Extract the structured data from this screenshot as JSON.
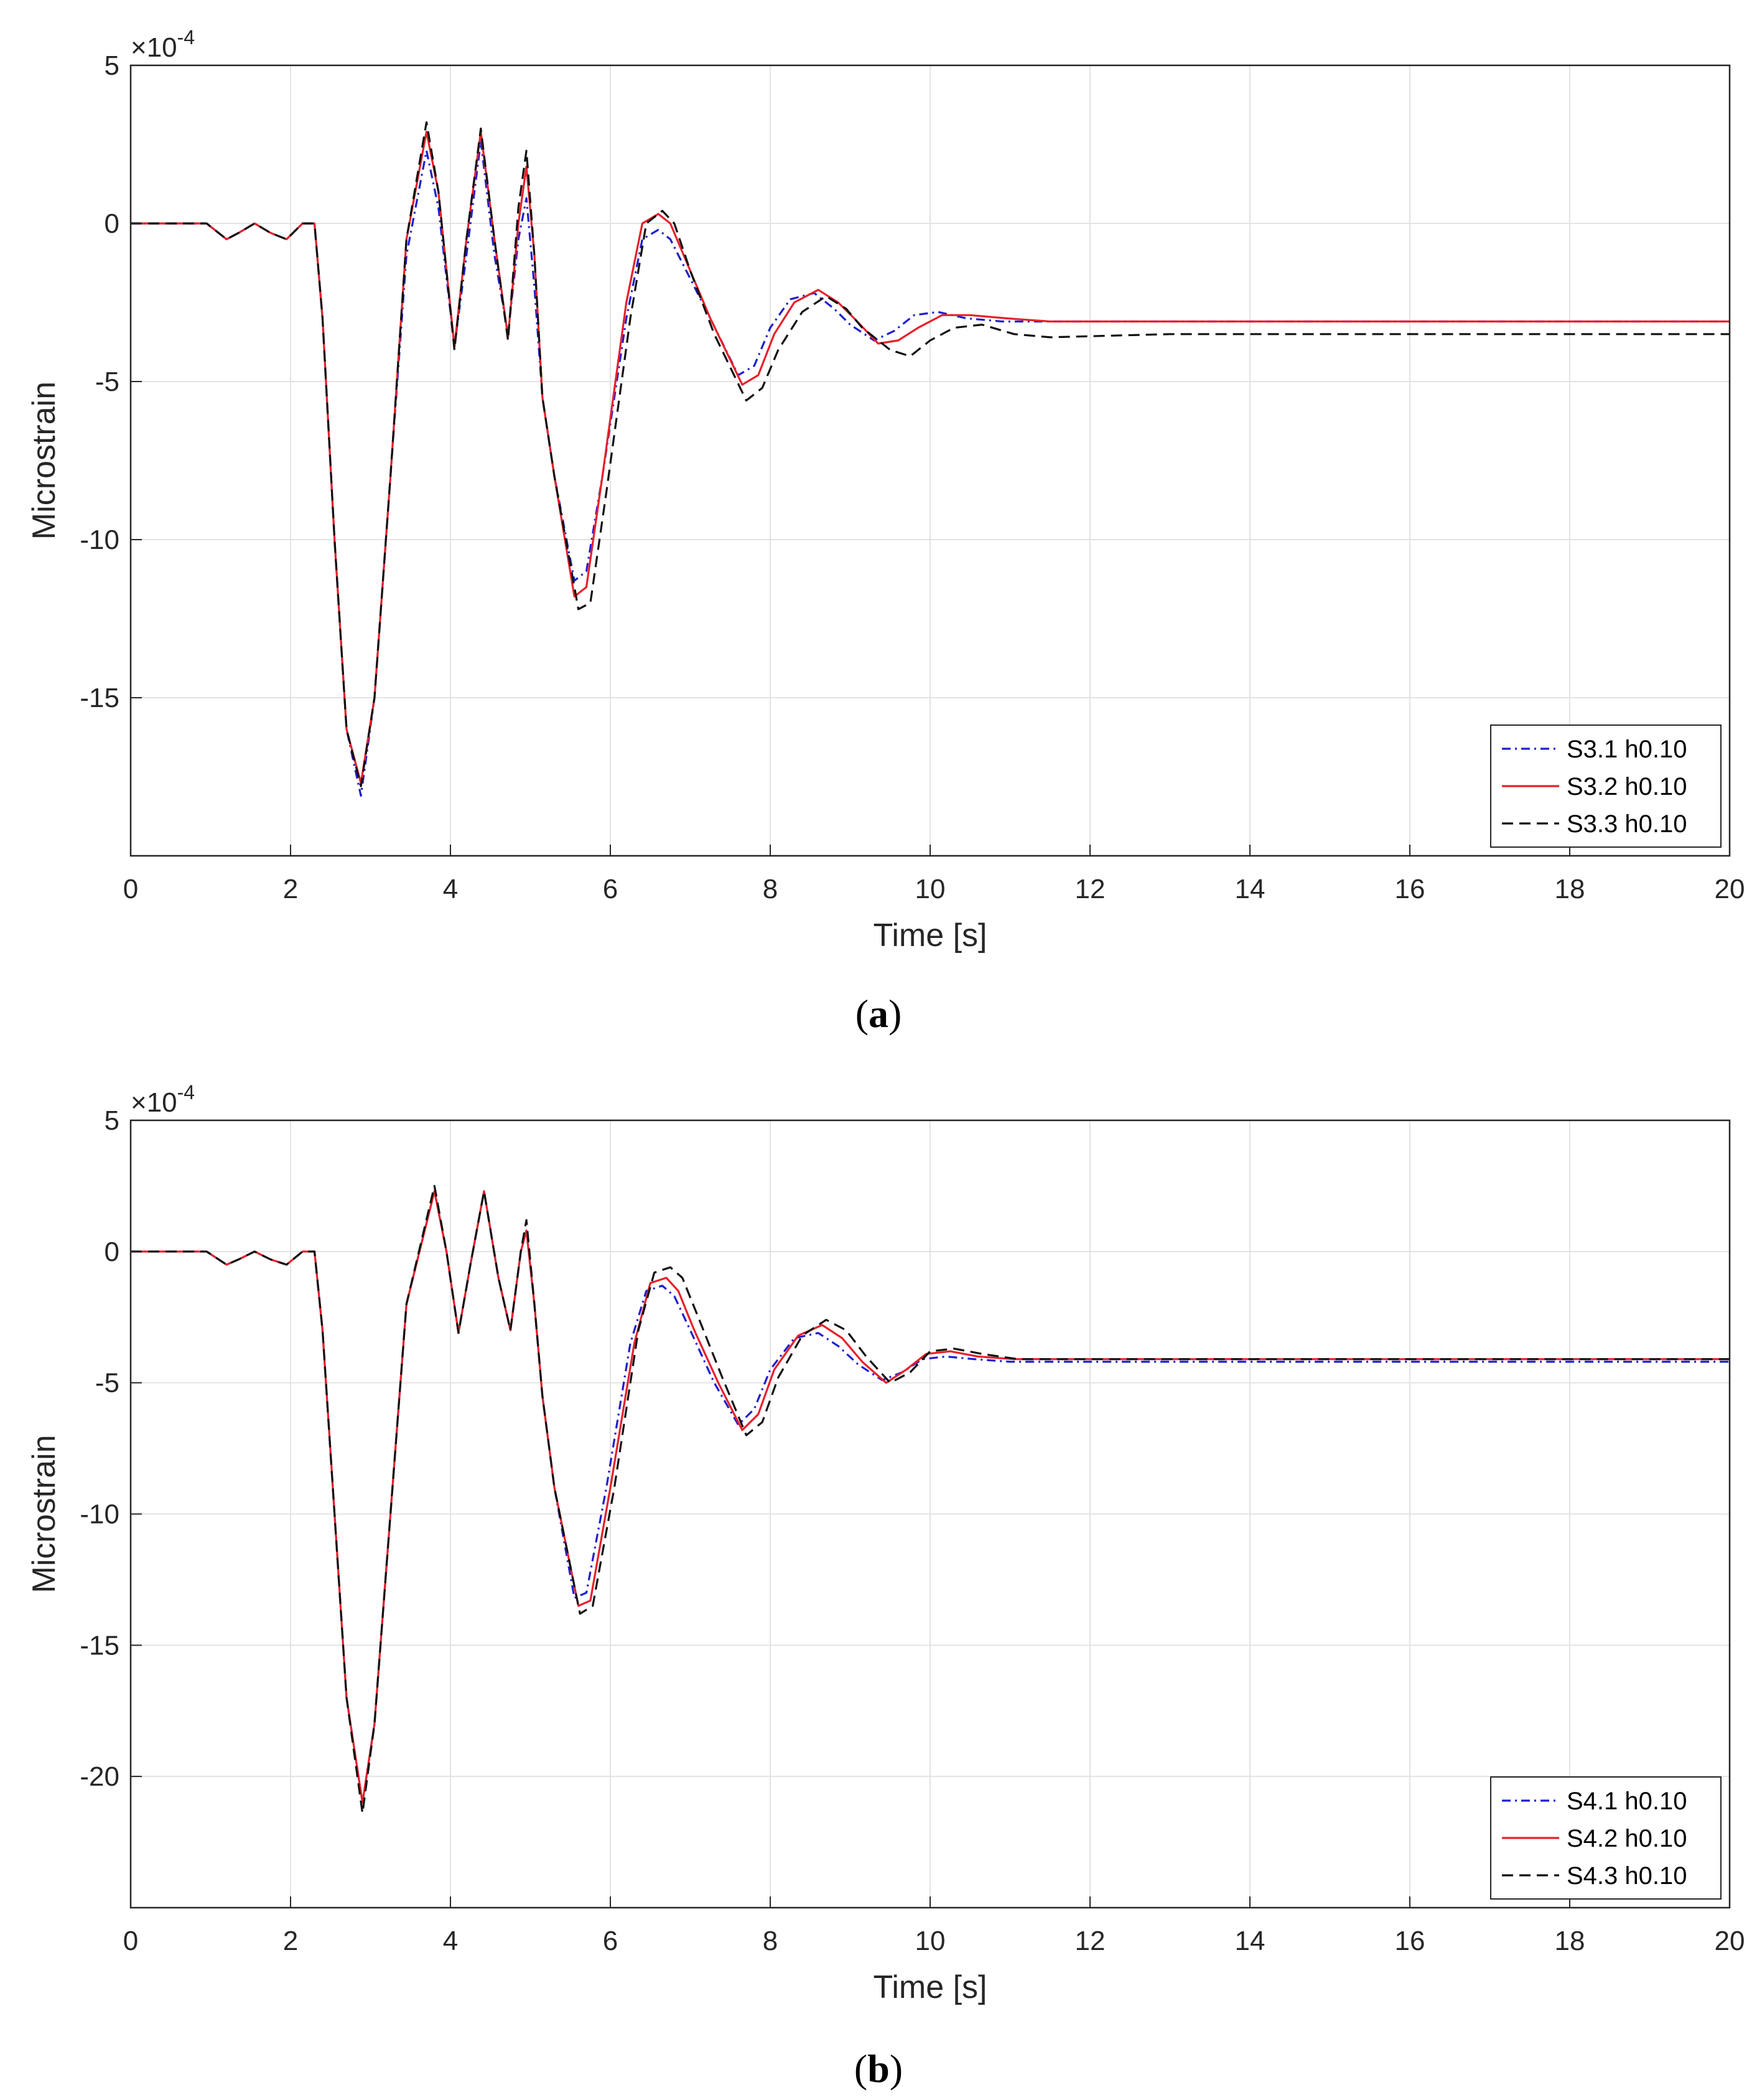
{
  "colors": {
    "series1": "#1f1fd0",
    "series2": "#e8202a",
    "series3": "#111111",
    "grid": "#e3e3e3",
    "axis": "#262626"
  },
  "panels": [
    {
      "caption_open": "(",
      "caption_letter": "a",
      "caption_close": ")",
      "multiplier_base": "×10",
      "multiplier_exp": "-4",
      "xlabel": "Time [s]",
      "ylabel": "Microstrain",
      "legend": [
        "S3.1 h0.10",
        "S3.2 h0.10",
        "S3.3 h0.10"
      ]
    },
    {
      "caption_open": "(",
      "caption_letter": "b",
      "caption_close": ")",
      "multiplier_base": "×10",
      "multiplier_exp": "-4",
      "xlabel": "Time [s]",
      "ylabel": "Microstrain",
      "legend": [
        "S4.1 h0.10",
        "S4.2 h0.10",
        "S4.3 h0.10"
      ]
    }
  ],
  "chart_data": [
    {
      "type": "line",
      "title": "(a)",
      "xlabel": "Time [s]",
      "ylabel": "Microstrain",
      "y_multiplier": "×10^-4",
      "xlim": [
        0,
        20
      ],
      "ylim": [
        -20,
        5
      ],
      "xticks": [
        0,
        2,
        4,
        6,
        8,
        10,
        12,
        14,
        16,
        18,
        20
      ],
      "yticks": [
        5,
        0,
        -5,
        -10,
        -15
      ],
      "grid": true,
      "legend_position": "bottom-right",
      "series": [
        {
          "name": "S3.1 h0.10",
          "style": "dashdot",
          "x": [
            0,
            0.95,
            1.2,
            1.35,
            1.55,
            1.75,
            1.95,
            2.15,
            2.3,
            2.4,
            2.55,
            2.7,
            2.88,
            3.05,
            3.25,
            3.45,
            3.7,
            3.85,
            4.05,
            4.2,
            4.38,
            4.55,
            4.72,
            4.85,
            4.95,
            5.05,
            5.15,
            5.3,
            5.55,
            5.7,
            5.9,
            6.2,
            6.4,
            6.6,
            6.75,
            6.95,
            7.25,
            7.6,
            7.8,
            8.0,
            8.25,
            8.55,
            8.8,
            9.0,
            9.3,
            9.55,
            9.8,
            10.1,
            10.45,
            10.9,
            11.5,
            13,
            16,
            20
          ],
          "y": [
            0,
            0,
            -0.5,
            -0.3,
            0,
            -0.3,
            -0.5,
            0,
            0,
            -3,
            -10,
            -16,
            -18.1,
            -15,
            -8,
            -1,
            2.3,
            0.5,
            -3.9,
            -1,
            2.6,
            -1,
            -3.5,
            -0.5,
            0.8,
            -2,
            -5.5,
            -8,
            -11.3,
            -11,
            -8,
            -3,
            -0.5,
            -0.2,
            -0.5,
            -1.5,
            -3,
            -4.8,
            -4.5,
            -3.3,
            -2.4,
            -2.2,
            -2.7,
            -3.2,
            -3.7,
            -3.4,
            -2.9,
            -2.8,
            -3,
            -3.1,
            -3.1,
            -3.1,
            -3.1,
            -3.1
          ]
        },
        {
          "name": "S3.2 h0.10",
          "style": "solid",
          "x": [
            0,
            0.95,
            1.2,
            1.35,
            1.55,
            1.75,
            1.95,
            2.15,
            2.3,
            2.4,
            2.55,
            2.7,
            2.88,
            3.05,
            3.25,
            3.45,
            3.7,
            3.85,
            4.05,
            4.2,
            4.38,
            4.55,
            4.72,
            4.85,
            4.95,
            5.05,
            5.15,
            5.3,
            5.55,
            5.7,
            5.9,
            6.2,
            6.4,
            6.6,
            6.75,
            6.95,
            7.25,
            7.65,
            7.85,
            8.05,
            8.3,
            8.6,
            8.85,
            9.05,
            9.35,
            9.6,
            9.85,
            10.15,
            10.5,
            10.95,
            11.5,
            13,
            16,
            20
          ],
          "y": [
            0,
            0,
            -0.5,
            -0.3,
            0,
            -0.3,
            -0.5,
            0,
            0,
            -3,
            -10,
            -16,
            -17.7,
            -15,
            -8,
            -0.5,
            2.9,
            1,
            -3.9,
            -0.5,
            2.9,
            -0.5,
            -3.6,
            0,
            1.8,
            -1,
            -5.5,
            -8,
            -11.8,
            -11.5,
            -8,
            -2.5,
            0,
            0.3,
            0,
            -1.2,
            -3,
            -5.1,
            -4.8,
            -3.5,
            -2.5,
            -2.1,
            -2.5,
            -3,
            -3.8,
            -3.7,
            -3.3,
            -2.9,
            -2.9,
            -3,
            -3.1,
            -3.1,
            -3.1,
            -3.1
          ]
        },
        {
          "name": "S3.3 h0.10",
          "style": "dashed",
          "x": [
            0,
            0.95,
            1.2,
            1.35,
            1.55,
            1.75,
            1.95,
            2.15,
            2.3,
            2.4,
            2.55,
            2.7,
            2.88,
            3.05,
            3.25,
            3.45,
            3.7,
            3.85,
            4.05,
            4.2,
            4.38,
            4.55,
            4.72,
            4.85,
            4.95,
            5.05,
            5.15,
            5.3,
            5.6,
            5.75,
            5.95,
            6.25,
            6.45,
            6.65,
            6.8,
            7.0,
            7.3,
            7.7,
            7.9,
            8.1,
            8.4,
            8.7,
            8.95,
            9.15,
            9.5,
            9.75,
            10.0,
            10.3,
            10.65,
            11.05,
            11.5,
            13,
            16,
            20
          ],
          "y": [
            0,
            0,
            -0.5,
            -0.3,
            0,
            -0.3,
            -0.5,
            0,
            0,
            -3,
            -10,
            -16,
            -17.8,
            -15,
            -8,
            -0.5,
            3.2,
            1,
            -4.0,
            -0.5,
            3.0,
            -0.5,
            -3.7,
            0.5,
            2.3,
            -1,
            -5.5,
            -8,
            -12.2,
            -12,
            -8.5,
            -3,
            0,
            0.4,
            0,
            -1.5,
            -3.5,
            -5.6,
            -5.2,
            -4,
            -2.8,
            -2.3,
            -2.7,
            -3.3,
            -4,
            -4.2,
            -3.7,
            -3.3,
            -3.2,
            -3.5,
            -3.6,
            -3.5,
            -3.5,
            -3.5
          ]
        }
      ]
    },
    {
      "type": "line",
      "title": "(b)",
      "xlabel": "Time [s]",
      "ylabel": "Microstrain",
      "y_multiplier": "×10^-4",
      "xlim": [
        0,
        20
      ],
      "ylim": [
        -25,
        5
      ],
      "xticks": [
        0,
        2,
        4,
        6,
        8,
        10,
        12,
        14,
        16,
        18,
        20
      ],
      "yticks": [
        5,
        0,
        -5,
        -10,
        -15,
        -20
      ],
      "grid": true,
      "legend_position": "bottom-right",
      "series": [
        {
          "name": "S4.1 h0.10",
          "style": "dashdot",
          "x": [
            0,
            0.95,
            1.2,
            1.35,
            1.55,
            1.75,
            1.95,
            2.15,
            2.3,
            2.4,
            2.55,
            2.7,
            2.9,
            3.05,
            3.25,
            3.45,
            3.8,
            3.95,
            4.1,
            4.25,
            4.42,
            4.6,
            4.75,
            4.88,
            4.95,
            5.05,
            5.15,
            5.3,
            5.55,
            5.7,
            5.95,
            6.25,
            6.45,
            6.65,
            6.8,
            7.0,
            7.3,
            7.6,
            7.8,
            8.0,
            8.3,
            8.6,
            8.85,
            9.1,
            9.4,
            9.65,
            9.9,
            10.2,
            10.55,
            11.0,
            11.5,
            13,
            16,
            20
          ],
          "y": [
            0,
            0,
            -0.5,
            -0.3,
            0,
            -0.3,
            -0.5,
            0,
            0,
            -3,
            -10,
            -17,
            -21,
            -18,
            -10,
            -2,
            2.3,
            0,
            -3.1,
            -0.5,
            2.3,
            -1,
            -3,
            0,
            0.8,
            -2,
            -5.5,
            -9,
            -13.2,
            -13,
            -9,
            -3.5,
            -1.5,
            -1.3,
            -1.7,
            -3,
            -5,
            -6.6,
            -6,
            -4.5,
            -3.3,
            -3.1,
            -3.6,
            -4.3,
            -4.9,
            -4.6,
            -4.1,
            -4,
            -4.1,
            -4.2,
            -4.2,
            -4.2,
            -4.2,
            -4.2
          ]
        },
        {
          "name": "S4.2 h0.10",
          "style": "solid",
          "x": [
            0,
            0.95,
            1.2,
            1.35,
            1.55,
            1.75,
            1.95,
            2.15,
            2.3,
            2.4,
            2.55,
            2.7,
            2.9,
            3.05,
            3.25,
            3.45,
            3.8,
            3.95,
            4.1,
            4.25,
            4.42,
            4.6,
            4.75,
            4.88,
            4.95,
            5.05,
            5.15,
            5.3,
            5.6,
            5.75,
            6.0,
            6.3,
            6.5,
            6.7,
            6.85,
            7.05,
            7.35,
            7.65,
            7.85,
            8.05,
            8.35,
            8.65,
            8.9,
            9.15,
            9.45,
            9.7,
            9.95,
            10.25,
            10.6,
            11.05,
            11.5,
            13,
            16,
            20
          ],
          "y": [
            0,
            0,
            -0.5,
            -0.3,
            0,
            -0.3,
            -0.5,
            0,
            0,
            -3,
            -10,
            -17,
            -21,
            -18,
            -10,
            -2,
            2.3,
            0,
            -3.1,
            -0.5,
            2.3,
            -1,
            -3,
            0,
            0.8,
            -2,
            -5.5,
            -9,
            -13.5,
            -13.3,
            -9,
            -3.5,
            -1.2,
            -1,
            -1.5,
            -3,
            -5,
            -6.8,
            -6.2,
            -4.5,
            -3.2,
            -2.8,
            -3.3,
            -4.2,
            -5,
            -4.5,
            -3.9,
            -3.8,
            -4,
            -4.1,
            -4.1,
            -4.1,
            -4.1,
            -4.1
          ]
        },
        {
          "name": "S4.3 h0.10",
          "style": "dashed",
          "x": [
            0,
            0.95,
            1.2,
            1.35,
            1.55,
            1.75,
            1.95,
            2.15,
            2.3,
            2.4,
            2.55,
            2.7,
            2.9,
            3.05,
            3.25,
            3.45,
            3.8,
            3.95,
            4.1,
            4.25,
            4.42,
            4.6,
            4.75,
            4.88,
            4.95,
            5.05,
            5.15,
            5.3,
            5.62,
            5.78,
            6.05,
            6.35,
            6.55,
            6.75,
            6.9,
            7.1,
            7.4,
            7.7,
            7.9,
            8.1,
            8.4,
            8.7,
            8.95,
            9.2,
            9.5,
            9.75,
            10.0,
            10.3,
            10.65,
            11.1,
            11.5,
            13,
            16,
            20
          ],
          "y": [
            0,
            0,
            -0.5,
            -0.3,
            0,
            -0.3,
            -0.5,
            0,
            0,
            -3,
            -10,
            -17,
            -21.4,
            -18,
            -10,
            -2,
            2.5,
            0,
            -3.1,
            -0.5,
            2.3,
            -1,
            -3,
            0,
            1.2,
            -2,
            -5.5,
            -9,
            -13.8,
            -13.5,
            -9,
            -3,
            -0.8,
            -0.6,
            -1,
            -2.5,
            -4.8,
            -7,
            -6.5,
            -4.8,
            -3.2,
            -2.6,
            -3,
            -4,
            -5,
            -4.6,
            -3.8,
            -3.7,
            -3.9,
            -4.1,
            -4.1,
            -4.1,
            -4.1,
            -4.1
          ]
        }
      ]
    }
  ]
}
